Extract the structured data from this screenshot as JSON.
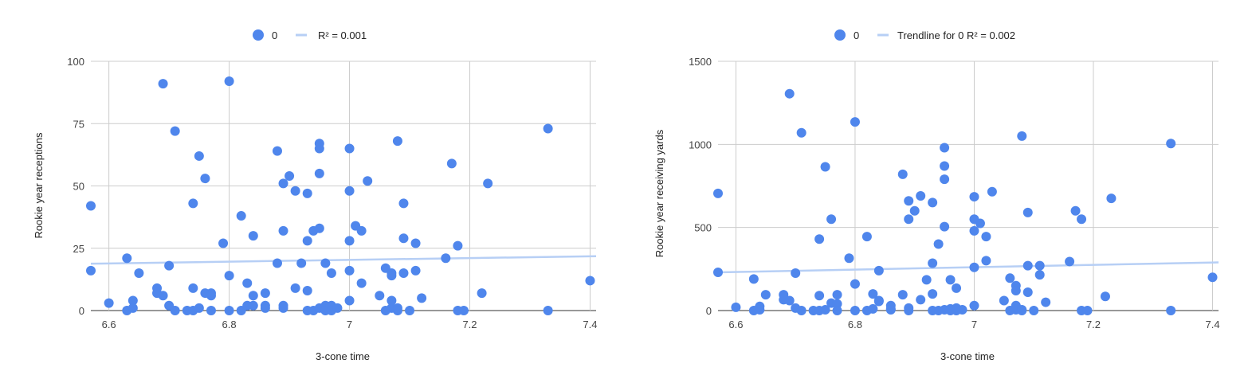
{
  "chart_data": [
    {
      "type": "scatter",
      "title": "",
      "xlabel": "3-cone time",
      "ylabel": "Rookie year receptions",
      "xlim": [
        6.57,
        7.41
      ],
      "ylim": [
        0,
        100
      ],
      "xticks": [
        "6.6",
        "6.8",
        "7",
        "7.2",
        "7.4"
      ],
      "yticks": [
        "0",
        "25",
        "50",
        "75",
        "100"
      ],
      "grid": true,
      "legend_position": "top",
      "legend": [
        {
          "label": "0",
          "kind": "point"
        },
        {
          "label": "R² = 0.001",
          "kind": "trendline"
        }
      ],
      "colors": {
        "points": "#4f86ec",
        "trendline": "#b7cff5"
      },
      "trendline": {
        "x": [
          6.57,
          7.41
        ],
        "y": [
          18.8,
          21.8
        ]
      },
      "series": [
        {
          "name": "0",
          "points": [
            [
              6.57,
              42
            ],
            [
              6.57,
              16
            ],
            [
              6.6,
              3
            ],
            [
              6.63,
              21
            ],
            [
              6.63,
              0
            ],
            [
              6.64,
              4
            ],
            [
              6.64,
              1
            ],
            [
              6.65,
              15
            ],
            [
              6.68,
              9
            ],
            [
              6.68,
              7
            ],
            [
              6.69,
              91
            ],
            [
              6.69,
              6
            ],
            [
              6.7,
              18
            ],
            [
              6.7,
              2
            ],
            [
              6.71,
              72
            ],
            [
              6.71,
              0
            ],
            [
              6.73,
              0
            ],
            [
              6.74,
              43
            ],
            [
              6.74,
              9
            ],
            [
              6.74,
              0
            ],
            [
              6.75,
              62
            ],
            [
              6.75,
              1
            ],
            [
              6.76,
              53
            ],
            [
              6.76,
              7
            ],
            [
              6.77,
              7
            ],
            [
              6.77,
              6
            ],
            [
              6.77,
              0
            ],
            [
              6.79,
              27
            ],
            [
              6.8,
              92
            ],
            [
              6.8,
              14
            ],
            [
              6.8,
              0
            ],
            [
              6.82,
              38
            ],
            [
              6.82,
              0
            ],
            [
              6.83,
              11
            ],
            [
              6.83,
              2
            ],
            [
              6.84,
              30
            ],
            [
              6.84,
              6
            ],
            [
              6.84,
              2
            ],
            [
              6.86,
              7
            ],
            [
              6.86,
              2
            ],
            [
              6.86,
              1
            ],
            [
              6.88,
              64
            ],
            [
              6.88,
              19
            ],
            [
              6.89,
              51
            ],
            [
              6.89,
              32
            ],
            [
              6.89,
              2
            ],
            [
              6.89,
              1
            ],
            [
              6.9,
              54
            ],
            [
              6.91,
              48
            ],
            [
              6.91,
              9
            ],
            [
              6.92,
              19
            ],
            [
              6.93,
              47
            ],
            [
              6.93,
              28
            ],
            [
              6.93,
              8
            ],
            [
              6.93,
              0
            ],
            [
              6.94,
              32
            ],
            [
              6.94,
              0
            ],
            [
              6.95,
              67
            ],
            [
              6.95,
              65
            ],
            [
              6.95,
              55
            ],
            [
              6.95,
              33
            ],
            [
              6.95,
              1
            ],
            [
              6.96,
              19
            ],
            [
              6.96,
              2
            ],
            [
              6.96,
              0
            ],
            [
              6.97,
              15
            ],
            [
              6.97,
              2
            ],
            [
              6.97,
              0
            ],
            [
              6.98,
              1
            ],
            [
              7.0,
              65
            ],
            [
              7.0,
              48
            ],
            [
              7.0,
              28
            ],
            [
              7.0,
              16
            ],
            [
              7.0,
              4
            ],
            [
              7.01,
              34
            ],
            [
              7.02,
              32
            ],
            [
              7.02,
              11
            ],
            [
              7.03,
              52
            ],
            [
              7.05,
              6
            ],
            [
              7.06,
              17
            ],
            [
              7.06,
              0
            ],
            [
              7.07,
              15
            ],
            [
              7.07,
              14
            ],
            [
              7.07,
              4
            ],
            [
              7.07,
              1
            ],
            [
              7.08,
              68
            ],
            [
              7.08,
              1
            ],
            [
              7.08,
              0
            ],
            [
              7.09,
              43
            ],
            [
              7.09,
              29
            ],
            [
              7.09,
              15
            ],
            [
              7.1,
              0
            ],
            [
              7.11,
              27
            ],
            [
              7.11,
              16
            ],
            [
              7.12,
              5
            ],
            [
              7.16,
              21
            ],
            [
              7.17,
              59
            ],
            [
              7.18,
              26
            ],
            [
              7.18,
              0
            ],
            [
              7.19,
              0
            ],
            [
              7.22,
              7
            ],
            [
              7.23,
              51
            ],
            [
              7.33,
              73
            ],
            [
              7.33,
              0
            ],
            [
              7.4,
              12
            ]
          ]
        }
      ]
    },
    {
      "type": "scatter",
      "title": "",
      "xlabel": "3-cone time",
      "ylabel": "Rookie year receiving yards",
      "xlim": [
        6.57,
        7.41
      ],
      "ylim": [
        0,
        1500
      ],
      "xticks": [
        "6.6",
        "6.8",
        "7",
        "7.2",
        "7.4"
      ],
      "yticks": [
        "0",
        "500",
        "1000",
        "1500"
      ],
      "grid": true,
      "legend_position": "top",
      "legend": [
        {
          "label": "0",
          "kind": "point"
        },
        {
          "label": "Trendline for 0 R² = 0.002",
          "kind": "trendline"
        }
      ],
      "colors": {
        "points": "#4f86ec",
        "trendline": "#b7cff5"
      },
      "trendline": {
        "x": [
          6.57,
          7.41
        ],
        "y": [
          230,
          290
        ]
      },
      "series": [
        {
          "name": "0",
          "points": [
            [
              6.57,
              705
            ],
            [
              6.57,
              230
            ],
            [
              6.6,
              20
            ],
            [
              6.63,
              190
            ],
            [
              6.63,
              0
            ],
            [
              6.64,
              25
            ],
            [
              6.64,
              5
            ],
            [
              6.65,
              95
            ],
            [
              6.68,
              95
            ],
            [
              6.68,
              65
            ],
            [
              6.69,
              1305
            ],
            [
              6.69,
              60
            ],
            [
              6.7,
              225
            ],
            [
              6.7,
              15
            ],
            [
              6.71,
              1070
            ],
            [
              6.71,
              0
            ],
            [
              6.73,
              0
            ],
            [
              6.74,
              430
            ],
            [
              6.74,
              90
            ],
            [
              6.74,
              0
            ],
            [
              6.75,
              865
            ],
            [
              6.75,
              5
            ],
            [
              6.76,
              550
            ],
            [
              6.76,
              45
            ],
            [
              6.77,
              95
            ],
            [
              6.77,
              40
            ],
            [
              6.77,
              0
            ],
            [
              6.79,
              315
            ],
            [
              6.8,
              1135
            ],
            [
              6.8,
              160
            ],
            [
              6.8,
              0
            ],
            [
              6.82,
              445
            ],
            [
              6.82,
              0
            ],
            [
              6.83,
              100
            ],
            [
              6.83,
              10
            ],
            [
              6.84,
              240
            ],
            [
              6.84,
              60
            ],
            [
              6.84,
              55
            ],
            [
              6.86,
              30
            ],
            [
              6.86,
              10
            ],
            [
              6.86,
              5
            ],
            [
              6.88,
              820
            ],
            [
              6.88,
              95
            ],
            [
              6.89,
              660
            ],
            [
              6.89,
              550
            ],
            [
              6.89,
              15
            ],
            [
              6.89,
              0
            ],
            [
              6.9,
              600
            ],
            [
              6.91,
              690
            ],
            [
              6.91,
              65
            ],
            [
              6.92,
              185
            ],
            [
              6.93,
              650
            ],
            [
              6.93,
              285
            ],
            [
              6.93,
              100
            ],
            [
              6.93,
              0
            ],
            [
              6.94,
              400
            ],
            [
              6.94,
              0
            ],
            [
              6.95,
              980
            ],
            [
              6.95,
              870
            ],
            [
              6.95,
              790
            ],
            [
              6.95,
              505
            ],
            [
              6.95,
              5
            ],
            [
              6.96,
              185
            ],
            [
              6.96,
              10
            ],
            [
              6.96,
              0
            ],
            [
              6.97,
              135
            ],
            [
              6.97,
              15
            ],
            [
              6.97,
              0
            ],
            [
              6.98,
              5
            ],
            [
              7.0,
              685
            ],
            [
              7.0,
              550
            ],
            [
              7.0,
              480
            ],
            [
              7.0,
              260
            ],
            [
              7.0,
              30
            ],
            [
              7.01,
              525
            ],
            [
              7.02,
              445
            ],
            [
              7.02,
              300
            ],
            [
              7.03,
              715
            ],
            [
              7.05,
              60
            ],
            [
              7.06,
              195
            ],
            [
              7.06,
              0
            ],
            [
              7.07,
              150
            ],
            [
              7.07,
              120
            ],
            [
              7.07,
              30
            ],
            [
              7.07,
              5
            ],
            [
              7.08,
              1050
            ],
            [
              7.08,
              5
            ],
            [
              7.08,
              0
            ],
            [
              7.09,
              590
            ],
            [
              7.09,
              270
            ],
            [
              7.09,
              110
            ],
            [
              7.1,
              0
            ],
            [
              7.11,
              270
            ],
            [
              7.11,
              215
            ],
            [
              7.12,
              50
            ],
            [
              7.16,
              295
            ],
            [
              7.17,
              600
            ],
            [
              7.18,
              550
            ],
            [
              7.18,
              0
            ],
            [
              7.19,
              0
            ],
            [
              7.22,
              85
            ],
            [
              7.23,
              675
            ],
            [
              7.33,
              1005
            ],
            [
              7.33,
              0
            ],
            [
              7.4,
              200
            ]
          ]
        }
      ]
    }
  ]
}
